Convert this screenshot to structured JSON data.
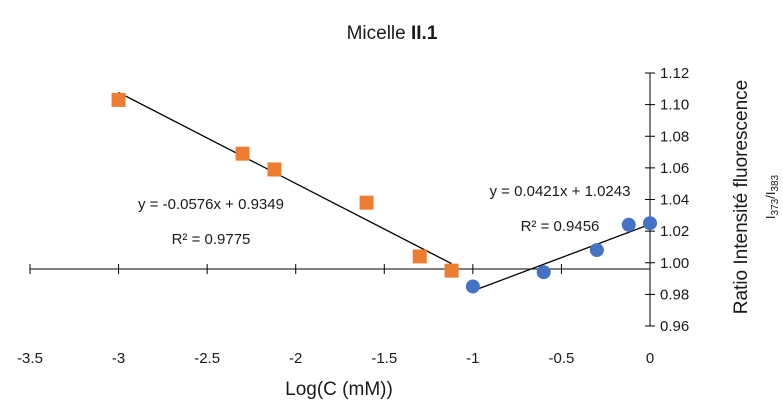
{
  "chart_data": {
    "type": "scatter",
    "title_parts": [
      "Micelle ",
      "II.1"
    ],
    "xlabel": "Log(C (mM))",
    "ylabel": "Ratio Intensité fluorescence",
    "ylabel_sub_parts": [
      "I",
      "373",
      "/I",
      "383"
    ],
    "xlim": [
      -3.5,
      0
    ],
    "ylim": [
      0.96,
      1.12
    ],
    "x_ticks": [
      "-3.5",
      "-3",
      "-2.5",
      "-2",
      "-1.5",
      "-1",
      "-0.5",
      "0"
    ],
    "y_ticks": [
      "0.96",
      "0.98",
      "1.00",
      "1.02",
      "1.04",
      "1.06",
      "1.08",
      "1.10",
      "1.12"
    ],
    "grid": false,
    "y_axis_position": "right",
    "series": [
      {
        "marker": "square",
        "color": "#ED7D31",
        "x": [
          -3.0,
          -2.3,
          -2.12,
          -1.6,
          -1.3,
          -1.12
        ],
        "y": [
          1.103,
          1.069,
          1.059,
          1.038,
          1.004,
          0.995
        ],
        "trendline": {
          "x": [
            -3.0,
            -1.12
          ],
          "equation": "y = -0.0576x + 0.9349",
          "r2": "R² = 0.9775"
        }
      },
      {
        "marker": "circle",
        "color": "#4472C4",
        "x": [
          -1.0,
          -0.6,
          -0.3,
          -0.12,
          0.0
        ],
        "y": [
          0.985,
          0.994,
          1.008,
          1.024,
          1.025
        ],
        "trendline": {
          "x": [
            -1.0,
            0.0
          ],
          "equation": "y = 0.0421x + 1.0243",
          "r2": "R² = 0.9456"
        }
      }
    ]
  }
}
